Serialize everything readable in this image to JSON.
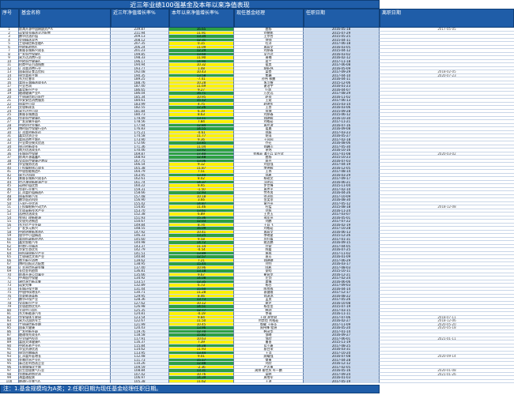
{
  "title": "近三年业绩100强基金及本年以来净值表现",
  "headers": [
    "序号",
    "基金名称",
    "近三年净值增长率%",
    "本年以来净值增长率%",
    "现任基金经理",
    "任职日期",
    "离职日期"
  ],
  "rows": [
    {
      "no": "1",
      "name": "前海开源中国稀缺资产A",
      "r3": "239.87",
      "ytd": "16.65",
      "manager": "曲扬",
      "start": "2016-05-18",
      "end": "2017-05-05"
    },
    {
      "no": "2",
      "name": "诺安成长精选灵活配置",
      "r3": "211.94",
      "ytd": "11.91",
      "manager": "刘慧影",
      "start": "2015-07-29",
      "end": ""
    },
    {
      "no": "3",
      "name": "鹏华优选价值",
      "r3": "209.13",
      "ytd": "13.34",
      "manager": "王宗合",
      "start": "2015-05-25",
      "end": ""
    },
    {
      "no": "4",
      "name": "交银精选混合",
      "r3": "208.12",
      "ytd": "12.31",
      "manager": "何帅",
      "start": "2015-04-11",
      "end": ""
    },
    {
      "no": "5",
      "name": "工银瑞信新金融A",
      "r3": "207.35",
      "ytd": "0.15",
      "manager": "杜洋",
      "start": "2017-06-18",
      "end": ""
    },
    {
      "no": "6",
      "name": "中欧新趋势A",
      "r3": "206.24",
      "ytd": "11.09",
      "manager": "周蔚文",
      "start": "2016-03-05",
      "end": ""
    },
    {
      "no": "7",
      "name": "景顺长城新兴成长",
      "r3": "201.23",
      "ytd": "12.29",
      "manager": "刘彦春",
      "start": "2015-04-12",
      "end": ""
    },
    {
      "no": "8",
      "name": "广发医疗保健A",
      "r3": "199.85",
      "ytd": "13.60",
      "manager": "吴兴武",
      "start": "2016-03-02",
      "end": ""
    },
    {
      "no": "9",
      "name": "易方达消费行业",
      "r3": "198.33",
      "ytd": "11.90",
      "manager": "萧楠",
      "start": "2016-02-12",
      "end": ""
    },
    {
      "no": "10",
      "name": "中欧医疗健康A",
      "r3": "196.17",
      "ytd": "14.90",
      "manager": "葛兰",
      "start": "2017-11-18",
      "end": ""
    },
    {
      "no": "11",
      "name": "招商中证白酒指数",
      "r3": "194.94",
      "ytd": "10.32",
      "manager": "侯昊",
      "start": "2017-06-08",
      "end": ""
    },
    {
      "no": "12",
      "name": "汇添富消费行业",
      "r3": "193.77",
      "ytd": "1.48",
      "manager": "胡昕炜",
      "start": "2016-05-09",
      "end": ""
    },
    {
      "no": "13",
      "name": "国泰国证食品饮料",
      "r3": "192.08",
      "ytd": "10.43",
      "manager": "梁杏",
      "start": "2017-09-29",
      "end": "2018-02-05"
    },
    {
      "no": "14",
      "name": "银华富裕主题",
      "r3": "190.35",
      "ytd": "13.58",
      "manager": "焦巍",
      "start": "2017-04-10",
      "end": "2020-07-23"
    },
    {
      "no": "15",
      "name": "东方红睿丰",
      "r3": "189.25",
      "ytd": "-7.41",
      "manager": "孙伟 林鹏",
      "start": "2016-04-11",
      "end": ""
    },
    {
      "no": "16",
      "name": "富国天惠精选成长A",
      "r3": "188.76",
      "ytd": "10.28",
      "manager": "朱少醒",
      "start": "2015-12-06",
      "end": ""
    },
    {
      "no": "17",
      "name": "兴全合润",
      "r3": "187.40",
      "ytd": "11.69",
      "manager": "谢治宇",
      "start": "2016-01-23",
      "end": ""
    },
    {
      "no": "18",
      "name": "嘉实新兴产业",
      "r3": "186.65",
      "ytd": "9.27",
      "manager": "归凯",
      "start": "2016-04-07",
      "end": ""
    },
    {
      "no": "19",
      "name": "融通健康产业A",
      "r3": "186.04",
      "ytd": "16.71",
      "manager": "万民远",
      "start": "2017-08-29",
      "end": ""
    },
    {
      "no": "20",
      "name": "工银瑞信前沿医疗",
      "r3": "185.34",
      "ytd": "10.95",
      "manager": "赵蓓",
      "start": "2016-11-02",
      "end": ""
    },
    {
      "no": "21",
      "name": "华安安信消费服务",
      "r3": "184.61",
      "ytd": "15.12",
      "manager": "王斌",
      "start": "2017-06-13",
      "end": ""
    },
    {
      "no": "22",
      "name": "国富中小盘",
      "r3": "183.99",
      "ytd": "4.75",
      "manager": "赵晓东",
      "start": "2015-03-14",
      "end": ""
    },
    {
      "no": "23",
      "name": "交银新成长",
      "r3": "182.55",
      "ytd": "12.26",
      "manager": "王崇",
      "start": "2016-03-06",
      "end": ""
    },
    {
      "no": "24",
      "name": "易方达中小盘",
      "r3": "181.84",
      "ytd": "6.19",
      "manager": "张坤",
      "start": "2015-09-28",
      "end": ""
    },
    {
      "no": "25",
      "name": "景顺长城鼎益",
      "r3": "180.73",
      "ytd": "8.63",
      "manager": "刘彦春",
      "start": "2015-06-12",
      "end": ""
    },
    {
      "no": "26",
      "name": "华夏医疗健康A",
      "r3": "179.49",
      "ytd": "13.11",
      "manager": "郑晓辉",
      "start": "2016-10-30",
      "end": ""
    },
    {
      "no": "27",
      "name": "广发双擎升级A",
      "r3": "178.56",
      "ytd": "7.84",
      "manager": "刘格菘",
      "start": "2017-11-21",
      "end": ""
    },
    {
      "no": "28",
      "name": "中欧时代先锋A",
      "r3": "177.94",
      "ytd": "12.84",
      "manager": "周应波",
      "start": "2016-07-16",
      "end": ""
    },
    {
      "no": "29",
      "name": "博时医疗保健行业A",
      "r3": "176.83",
      "ytd": "14.55",
      "manager": "葛晨",
      "start": "2016-09-08",
      "end": ""
    },
    {
      "no": "30",
      "name": "汇添富创新医药",
      "r3": "175.21",
      "ytd": "-0.61",
      "manager": "郑磊",
      "start": "2017-03-23",
      "end": ""
    },
    {
      "no": "31",
      "name": "嘉实优质企业",
      "r3": "174.58",
      "ytd": "11.77",
      "manager": "胡涛",
      "start": "2016-05-27",
      "end": ""
    },
    {
      "no": "32",
      "name": "富国消费主题A",
      "r3": "173.90",
      "ytd": "9.36",
      "manager": "王园园",
      "start": "2017-02-18",
      "end": ""
    },
    {
      "no": "33",
      "name": "兴全商业模式优选",
      "r3": "172.66",
      "ytd": "13.85",
      "manager": "乔迁",
      "start": "2016-08-06",
      "end": ""
    },
    {
      "no": "34",
      "name": "银河创新成长",
      "r3": "171.36",
      "ytd": "11.04",
      "manager": "郑巍山",
      "start": "2017-05-30",
      "end": ""
    },
    {
      "no": "35",
      "name": "南方优选成长A",
      "r3": "170.46",
      "ytd": "13.92",
      "manager": "茅炜",
      "start": "2016-10-16",
      "end": ""
    },
    {
      "no": "36",
      "name": "长城医疗保健",
      "r3": "169.87",
      "ytd": "17.40",
      "manager": "刘格菘 谭小兵 吴兴武",
      "start": "2017-01-08",
      "end": "2020-03-02"
    },
    {
      "no": "37",
      "name": "前海开源嘉鑫A",
      "r3": "168.93",
      "ytd": "12.48",
      "manager": "曲扬",
      "start": "2015-10-23",
      "end": ""
    },
    {
      "no": "38",
      "name": "宝盈医疗健康沪港深",
      "r3": "167.75",
      "ytd": "13.06",
      "manager": "蔡丹",
      "start": "2016-07-03",
      "end": ""
    },
    {
      "no": "39",
      "name": "华宝服务优选",
      "r3": "166.54",
      "ytd": "9.12",
      "manager": "刘自强",
      "start": "2017-04-19",
      "end": ""
    },
    {
      "no": "40",
      "name": "上投摩根核心成长",
      "r3": "165.38",
      "ytd": "11.87",
      "manager": "李德辉",
      "start": "2016-12-05",
      "end": ""
    },
    {
      "no": "41",
      "name": "中银智能制造A",
      "r3": "164.79",
      "ytd": "7.51",
      "manager": "王伟",
      "start": "2017-08-14",
      "end": ""
    },
    {
      "no": "42",
      "name": "易方达科翔",
      "r3": "163.95",
      "ytd": "13.40",
      "manager": "郑希",
      "start": "2016-03-29",
      "end": ""
    },
    {
      "no": "43",
      "name": "景顺长城新兴成长A",
      "r3": "162.61",
      "ytd": "8.02",
      "manager": "杨锐文",
      "start": "2017-09-17",
      "end": ""
    },
    {
      "no": "44",
      "name": "信达澳银新能源产业",
      "r3": "161.74",
      "ytd": "14.37",
      "manager": "冯明远",
      "start": "2016-06-21",
      "end": ""
    },
    {
      "no": "45",
      "name": "诺德价值优势",
      "r3": "160.22",
      "ytd": "9.95",
      "manager": "罗世锋",
      "start": "2015-11-04",
      "end": ""
    },
    {
      "no": "46",
      "name": "华夏行业景气",
      "r3": "159.31",
      "ytd": "-1.50",
      "manager": "周克平",
      "start": "2017-02-10",
      "end": ""
    },
    {
      "no": "47",
      "name": "汇添富价值精选A",
      "r3": "158.66",
      "ytd": "12.93",
      "manager": "劳杰男",
      "start": "2016-04-26",
      "end": ""
    },
    {
      "no": "48",
      "name": "国泰智能汽车",
      "r3": "157.48",
      "ytd": "10.18",
      "manager": "徐治彪",
      "start": "2017-10-09",
      "end": ""
    },
    {
      "no": "49",
      "name": "鹏华医药科技",
      "r3": "156.90",
      "ytd": "3.66",
      "manager": "金笑非",
      "start": "2016-08-30",
      "end": ""
    },
    {
      "no": "50",
      "name": "万家行业优选",
      "r3": "155.42",
      "ytd": "14.87",
      "manager": "黄兴亮",
      "start": "2017-05-12",
      "end": ""
    },
    {
      "no": "51",
      "name": "上投摩根新兴动力A",
      "r3": "154.85",
      "ytd": "11.46",
      "manager": "杜猛",
      "start": "2015-08-18",
      "end": "2018-12-08"
    },
    {
      "no": "52",
      "name": "大成高新技术产业",
      "r3": "153.70",
      "ytd": "13.61",
      "manager": "刘旭",
      "start": "2016-11-24",
      "end": ""
    },
    {
      "no": "53",
      "name": "泓德优选成长",
      "r3": "152.38",
      "ytd": "6.89",
      "manager": "王克玉",
      "start": "2017-03-07",
      "end": ""
    },
    {
      "no": "54",
      "name": "农银汇理新能源",
      "r3": "151.93",
      "ytd": "15.36",
      "manager": "邢军亮",
      "start": "2016-05-01",
      "end": ""
    },
    {
      "no": "55",
      "name": "交银先进制造",
      "r3": "150.67",
      "ytd": "12.03",
      "manager": "刘鹏",
      "start": "2017-07-22",
      "end": ""
    },
    {
      "no": "56",
      "name": "东方红产业升级",
      "r3": "149.84",
      "ytd": "8.74",
      "manager": "王延飞",
      "start": "2016-02-19",
      "end": ""
    },
    {
      "no": "57",
      "name": "广发多元新兴",
      "r3": "148.55",
      "ytd": "16.09",
      "manager": "刘格菘",
      "start": "2017-10-28",
      "end": ""
    },
    {
      "no": "58",
      "name": "中欧明睿新常态A",
      "r3": "147.92",
      "ytd": "10.41",
      "manager": "周蔚文",
      "start": "2016-06-13",
      "end": ""
    },
    {
      "no": "59",
      "name": "银华中小盘精选",
      "r3": "146.33",
      "ytd": "13.25",
      "manager": "李晓星",
      "start": "2015-12-26",
      "end": ""
    },
    {
      "no": "60",
      "name": "富国低碳新经济A",
      "r3": "145.60",
      "ytd": "9.58",
      "manager": "厉叶淼",
      "start": "2017-01-31",
      "end": ""
    },
    {
      "no": "61",
      "name": "嘉实智能汽车",
      "r3": "144.98",
      "ytd": "14.72",
      "manager": "姚志鹏",
      "start": "2016-09-15",
      "end": ""
    },
    {
      "no": "62",
      "name": "招商行业精选",
      "r3": "143.37",
      "ytd": "11.14",
      "manager": "付斌",
      "start": "2017-04-05",
      "end": ""
    },
    {
      "no": "63",
      "name": "华安生态优先",
      "r3": "142.79",
      "ytd": "-0.54",
      "manager": "陈媛",
      "start": "2016-07-25",
      "end": ""
    },
    {
      "no": "64",
      "name": "国投瑞银新兴产业",
      "r3": "141.51",
      "ytd": "13.89",
      "manager": "施成",
      "start": "2017-11-02",
      "end": ""
    },
    {
      "no": "65",
      "name": "工银瑞信文体产业",
      "r3": "140.84",
      "ytd": "12.57",
      "manager": "袁芳",
      "start": "2016-01-09",
      "end": ""
    },
    {
      "no": "66",
      "name": "南方新兴消费",
      "r3": "139.62",
      "ytd": "7.21",
      "manager": "郑晓曦",
      "start": "2017-06-29",
      "end": ""
    },
    {
      "no": "67",
      "name": "博时回报灵活配置",
      "r3": "138.95",
      "ytd": "15.44",
      "manager": "刘钊",
      "start": "2016-03-17",
      "end": ""
    },
    {
      "no": "68",
      "name": "汇丰晋信低碳先锋",
      "r3": "137.40",
      "ytd": "10.96",
      "manager": "陆彬",
      "start": "2017-08-03",
      "end": ""
    },
    {
      "no": "69",
      "name": "长信金利趋势",
      "r3": "136.81",
      "ytd": "13.18",
      "manager": "安昀",
      "start": "2015-10-11",
      "end": ""
    },
    {
      "no": "70",
      "name": "前海开源公用事业",
      "r3": "135.66",
      "ytd": "9.67",
      "manager": "崔宸龙",
      "start": "2016-12-21",
      "end": ""
    },
    {
      "no": "71",
      "name": "中海医疗保健",
      "r3": "134.92",
      "ytd": "14.08",
      "manager": "左剑",
      "start": "2017-02-24",
      "end": ""
    },
    {
      "no": "72",
      "name": "建信潜力新蓝筹",
      "r3": "133.57",
      "ytd": "12.35",
      "manager": "姜锋",
      "start": "2016-06-06",
      "end": ""
    },
    {
      "no": "73",
      "name": "诺安先锋",
      "r3": "132.89",
      "ytd": "6.73",
      "manager": "杨谷",
      "start": "2017-09-03",
      "end": ""
    },
    {
      "no": "74",
      "name": "长城环保主题",
      "r3": "131.44",
      "ytd": "15.60",
      "manager": "陈良栋",
      "start": "2016-04-14",
      "end": ""
    },
    {
      "no": "75",
      "name": "中银持续增长A",
      "r3": "130.71",
      "ytd": "11.28",
      "manager": "袁健维",
      "start": "2017-12-17",
      "end": ""
    },
    {
      "no": "76",
      "name": "华夏能源革新",
      "r3": "129.95",
      "ytd": "8.46",
      "manager": "郑泽鸿",
      "start": "2016-08-22",
      "end": ""
    },
    {
      "no": "77",
      "name": "鹏华环保产业",
      "r3": "128.36",
      "ytd": "13.73",
      "manager": "孟昊",
      "start": "2017-05-26",
      "end": ""
    },
    {
      "no": "78",
      "name": "宝盈新兴产业",
      "r3": "127.62",
      "ytd": "10.12",
      "manager": "姚艺",
      "start": "2016-10-08",
      "end": ""
    },
    {
      "no": "79",
      "name": "交银趋势优先A",
      "r3": "126.98",
      "ytd": "14.51",
      "manager": "杨金金",
      "start": "2015-07-19",
      "end": ""
    },
    {
      "no": "80",
      "name": "大成中小盘A",
      "r3": "125.35",
      "ytd": "12.77",
      "manager": "韩创",
      "start": "2017-03-15",
      "end": ""
    },
    {
      "no": "81",
      "name": "东方新能源汽车",
      "r3": "124.81",
      "ytd": "-0.19",
      "manager": "李瑞",
      "start": "2016-11-11",
      "end": ""
    },
    {
      "no": "82",
      "name": "华安媒体互联网",
      "r3": "123.54",
      "ytd": "9.84",
      "manager": "王斌 胡宜斌",
      "start": "2017-07-06",
      "end": "2018-07-11"
    },
    {
      "no": "83",
      "name": "易方达国防军工",
      "r3": "122.67",
      "ytd": "11.50",
      "manager": "何崇恺 刘格菘",
      "start": "2016-02-27",
      "end": "2018-12-06"
    },
    {
      "no": "84",
      "name": "工银瑞信新金融",
      "r3": "121.99",
      "ytd": "10.45",
      "manager": "鄢耀 王筱苓",
      "start": "2017-11-09",
      "end": "2020-05-20"
    },
    {
      "no": "85",
      "name": "国泰大健康",
      "r3": "120.43",
      "ytd": "13.96",
      "manager": "周伟锋 程洲",
      "start": "2016-05-20",
      "end": "2020-05-18"
    },
    {
      "no": "86",
      "name": "广发创新升级",
      "r3": "119.76",
      "ytd": "12.70",
      "manager": "韩茂华",
      "start": "2017-01-14",
      "end": ""
    },
    {
      "no": "87",
      "name": "融通领先成长A",
      "r3": "118.58",
      "ytd": "15.82",
      "manager": "邹曦",
      "start": "2016-09-27",
      "end": ""
    },
    {
      "no": "88",
      "name": "兴全绿色投资",
      "r3": "117.91",
      "ytd": "10.63",
      "manager": "邹欣",
      "start": "2017-06-01",
      "end": "2021-01-11"
    },
    {
      "no": "89",
      "name": "富国文体健康A",
      "r3": "116.37",
      "ytd": "7.39",
      "manager": "曹晋",
      "start": "2015-11-19",
      "end": ""
    },
    {
      "no": "90",
      "name": "中欧养老产业A",
      "r3": "115.84",
      "ytd": "14.28",
      "manager": "蓝小康",
      "start": "2017-08-25",
      "end": ""
    },
    {
      "no": "91",
      "name": "华宝资源优选",
      "r3": "114.62",
      "ytd": "11.93",
      "manager": "蔡目荣",
      "start": "2016-03-31",
      "end": ""
    },
    {
      "no": "92",
      "name": "银华内需精选",
      "r3": "113.95",
      "ytd": "13.44",
      "manager": "王浩",
      "start": "2017-10-20",
      "end": ""
    },
    {
      "no": "93",
      "name": "汇添富外延增长",
      "r3": "112.48",
      "ytd": "9.01",
      "manager": "顾耀强",
      "start": "2016-07-08",
      "end": "2020-09-14"
    },
    {
      "no": "94",
      "name": "金鹰信息产业A",
      "r3": "111.73",
      "ytd": "15.17",
      "manager": "樊勇",
      "start": "2017-04-28",
      "end": ""
    },
    {
      "no": "95",
      "name": "泰达宏利首选企业",
      "r3": "110.26",
      "ytd": "12.88",
      "manager": "刘欣",
      "start": "2016-12-12",
      "end": ""
    },
    {
      "no": "96",
      "name": "长盛城镇化主题",
      "r3": "109.59",
      "ytd": "-2.36",
      "manager": "严志勇",
      "start": "2017-02-05",
      "end": ""
    },
    {
      "no": "97",
      "name": "民生加银景气行业",
      "r3": "108.84",
      "ytd": "13.31",
      "manager": "周帅 柳世庆 叶一鹏",
      "start": "2016-05-16",
      "end": "2020-01-08"
    },
    {
      "no": "98",
      "name": "华商新趋势优选",
      "r3": "107.42",
      "ytd": "10.76",
      "manager": "梁皓",
      "start": "2017-09-24",
      "end": "2021-01-26"
    },
    {
      "no": "99",
      "name": "海富通股票",
      "r3": "106.97",
      "ytd": "14.39",
      "manager": "周雪军",
      "start": "2016-01-03",
      "end": ""
    },
    {
      "no": "100",
      "name": "融通行业景气A",
      "r3": "105.38",
      "ytd": "11.62",
      "manager": "王迪",
      "start": "2017-05-19",
      "end": ""
    }
  ],
  "footer": "注：1.基金规模均为A类；2.任职日期为现任基金经理任职日期。",
  "colors": {
    "header_bg": "#1f5da8",
    "positive_green": "#2ea043",
    "highlight_yellow": "#fff200",
    "date_blue": "#c7d8ee"
  }
}
